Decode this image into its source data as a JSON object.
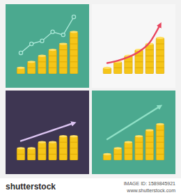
{
  "chart_data": [
    {
      "type": "bar",
      "categories": [
        null,
        null,
        null,
        null,
        null,
        null
      ],
      "ylim": [
        0,
        10
      ],
      "tick_labels": false,
      "series": [
        {
          "type": "bar",
          "color": "#f5c518",
          "values": [
            1,
            2,
            3,
            4,
            5,
            7
          ]
        },
        {
          "type": "line",
          "color": "#a8e6d6",
          "marker": "circle",
          "values": [
            3.5,
            5,
            5.5,
            7,
            6.5,
            9.5
          ]
        }
      ]
    },
    {
      "type": "bar",
      "categories": [
        null,
        null,
        null,
        null,
        null,
        null
      ],
      "ylim": [
        0,
        10
      ],
      "tick_labels": false,
      "series": [
        {
          "type": "bar",
          "color": "#f5c518",
          "values": [
            1,
            2,
            3,
            4,
            5,
            6
          ]
        },
        {
          "type": "line",
          "color": "#e8455e",
          "marker": "arrow",
          "values": [
            1.8,
            2.2,
            2.8,
            3.7,
            5.2,
            8.2
          ]
        }
      ]
    },
    {
      "type": "bar",
      "categories": [
        null,
        null,
        null,
        null,
        null,
        null
      ],
      "ylim": [
        0,
        10
      ],
      "tick_labels": false,
      "series": [
        {
          "type": "bar",
          "color": "#f5c518",
          "values": [
            2,
            2,
            3,
            3,
            4,
            4
          ]
        },
        {
          "type": "line",
          "color": "#dcc4f2",
          "marker": "arrow",
          "values": [
            3.2,
            3.8,
            4.4,
            5,
            5.6,
            6.2
          ]
        }
      ]
    },
    {
      "type": "bar",
      "categories": [
        null,
        null,
        null,
        null,
        null,
        null
      ],
      "ylim": [
        0,
        10
      ],
      "tick_labels": false,
      "series": [
        {
          "type": "bar",
          "color": "#f5c518",
          "values": [
            1,
            2,
            3,
            4,
            5,
            6
          ]
        },
        {
          "type": "line",
          "color": "#8fe0c6",
          "marker": "arrow",
          "values": [
            3.5,
            4.6,
            5.7,
            6.8,
            7.9,
            9
          ]
        }
      ]
    }
  ],
  "footer": {
    "logo": "shutterstock",
    "image_id": "IMAGE ID: 1589845921",
    "url": "www.shutterstock.com"
  }
}
